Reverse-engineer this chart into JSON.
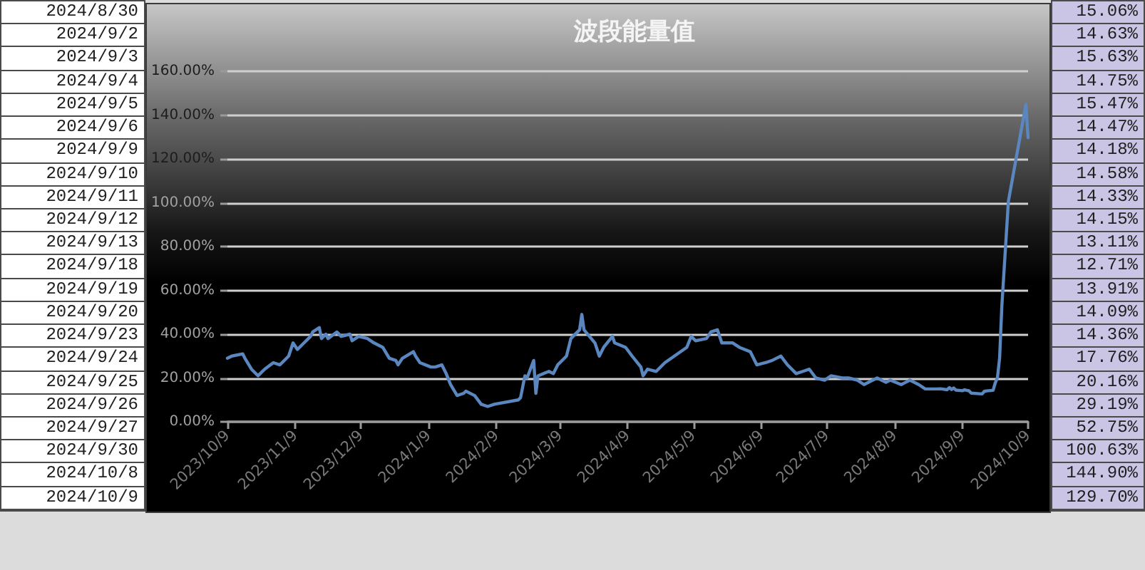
{
  "chart_data": [
    {
      "type": "other",
      "annotations": [
        "2024/8/30",
        "2024/9/2",
        "2024/9/3",
        "2024/9/4",
        "2024/9/5",
        "2024/9/6",
        "2024/9/9",
        "2024/9/10",
        "2024/9/11",
        "2024/9/12",
        "2024/9/13",
        "2024/9/18",
        "2024/9/19",
        "2024/9/20",
        "2024/9/23",
        "2024/9/24",
        "2024/9/25",
        "2024/9/26",
        "2024/9/27",
        "2024/9/30",
        "2024/10/8",
        "2024/10/9"
      ]
    },
    {
      "type": "line",
      "title": "波段能量值",
      "x": [
        "2023-10-09",
        "2023-10-11",
        "2023-10-16",
        "2023-10-17",
        "2023-10-20",
        "2023-10-23",
        "2023-10-26",
        "2023-10-30",
        "2023-11-02",
        "2023-11-06",
        "2023-11-08",
        "2023-11-10",
        "2023-11-13",
        "2023-11-16",
        "2023-11-17",
        "2023-11-20",
        "2023-11-21",
        "2023-11-23",
        "2023-11-24",
        "2023-11-28",
        "2023-11-30",
        "2023-12-04",
        "2023-12-05",
        "2023-12-08",
        "2023-12-12",
        "2023-12-15",
        "2023-12-19",
        "2023-12-22",
        "2023-12-25",
        "2023-12-26",
        "2023-12-28",
        "2024-01-02",
        "2024-01-03",
        "2024-01-05",
        "2024-01-10",
        "2024-01-12",
        "2024-01-15",
        "2024-01-17",
        "2024-01-19",
        "2024-01-22",
        "2024-01-25",
        "2024-01-26",
        "2024-01-30",
        "2024-02-02",
        "2024-02-05",
        "2024-02-08",
        "2024-02-19",
        "2024-02-20",
        "2024-02-22",
        "2024-02-23",
        "2024-02-26",
        "2024-02-27",
        "2024-02-28",
        "2024-03-04",
        "2024-03-06",
        "2024-03-08",
        "2024-03-12",
        "2024-03-14",
        "2024-03-18",
        "2024-03-19",
        "2024-03-20",
        "2024-03-25",
        "2024-03-27",
        "2024-03-29",
        "2024-04-02",
        "2024-04-03",
        "2024-04-08",
        "2024-04-11",
        "2024-04-15",
        "2024-04-16",
        "2024-04-18",
        "2024-04-22",
        "2024-04-26",
        "2024-05-06",
        "2024-05-08",
        "2024-05-10",
        "2024-05-15",
        "2024-05-17",
        "2024-05-20",
        "2024-05-22",
        "2024-05-27",
        "2024-05-30",
        "2024-06-04",
        "2024-06-07",
        "2024-06-11",
        "2024-06-14",
        "2024-06-18",
        "2024-06-21",
        "2024-06-25",
        "2024-06-28",
        "2024-07-01",
        "2024-07-04",
        "2024-07-08",
        "2024-07-11",
        "2024-07-16",
        "2024-07-19",
        "2024-07-23",
        "2024-07-26",
        "2024-07-30",
        "2024-08-01",
        "2024-08-05",
        "2024-08-07",
        "2024-08-12",
        "2024-08-14",
        "2024-08-16",
        "2024-08-20",
        "2024-08-23",
        "2024-08-28",
        "2024-08-30",
        "2024-09-02",
        "2024-09-03",
        "2024-09-04",
        "2024-09-05",
        "2024-09-06",
        "2024-09-09",
        "2024-09-10",
        "2024-09-11",
        "2024-09-12",
        "2024-09-13",
        "2024-09-18",
        "2024-09-19",
        "2024-09-20",
        "2024-09-23",
        "2024-09-24",
        "2024-09-25",
        "2024-09-26",
        "2024-09-27",
        "2024-09-30",
        "2024-10-08",
        "2024-10-09"
      ],
      "values": [
        29,
        30,
        31,
        29,
        24,
        21,
        24,
        27,
        26,
        30,
        36,
        33,
        36,
        39,
        41,
        43,
        38,
        40,
        38,
        41,
        39,
        40,
        37,
        39,
        38,
        36,
        34,
        29,
        28,
        26,
        29,
        32,
        30,
        27,
        25,
        25,
        26,
        22,
        17,
        12,
        13,
        14,
        12,
        8,
        7,
        8,
        10,
        11,
        21,
        20,
        28,
        13,
        21,
        23,
        22,
        26,
        30,
        38,
        42,
        49,
        42,
        36,
        30,
        34,
        39,
        36,
        34,
        30,
        25,
        21,
        24,
        23,
        27,
        34,
        39,
        37,
        38,
        41,
        42,
        36,
        36,
        34,
        32,
        26,
        27,
        28,
        30,
        26,
        22,
        23,
        24,
        20,
        19,
        21,
        20,
        20,
        19,
        17,
        19,
        20,
        18,
        19,
        17,
        18,
        19,
        17,
        15,
        15,
        15.06,
        14.63,
        15.63,
        14.75,
        15.47,
        14.47,
        14.18,
        14.58,
        14.33,
        14.15,
        13.11,
        12.71,
        13.91,
        14.09,
        14.36,
        17.76,
        20.16,
        29.19,
        52.75,
        100.63,
        144.9,
        129.7
      ],
      "color": "#5a87bf",
      "xlim": [
        "2023-10-09",
        "2024-10-09"
      ],
      "xticks": [
        {
          "value": "2023-10-09",
          "label": "2023/10/9"
        },
        {
          "value": "2023-11-09",
          "label": "2023/11/9"
        },
        {
          "value": "2023-12-09",
          "label": "2023/12/9"
        },
        {
          "value": "2024-01-09",
          "label": "2024/1/9"
        },
        {
          "value": "2024-02-09",
          "label": "2024/2/9"
        },
        {
          "value": "2024-03-09",
          "label": "2024/3/9"
        },
        {
          "value": "2024-04-09",
          "label": "2024/4/9"
        },
        {
          "value": "2024-05-09",
          "label": "2024/5/9"
        },
        {
          "value": "2024-06-09",
          "label": "2024/6/9"
        },
        {
          "value": "2024-07-09",
          "label": "2024/7/9"
        },
        {
          "value": "2024-08-09",
          "label": "2024/8/9"
        },
        {
          "value": "2024-09-09",
          "label": "2024/9/9"
        },
        {
          "value": "2024-10-09",
          "label": "2024/10/9"
        }
      ],
      "ylim": [
        0,
        160
      ],
      "yticks": [
        {
          "value": 0,
          "label": "0.00%"
        },
        {
          "value": 20,
          "label": "20.00%"
        },
        {
          "value": 40,
          "label": "40.00%"
        },
        {
          "value": 60,
          "label": "60.00%"
        },
        {
          "value": 80,
          "label": "80.00%"
        },
        {
          "value": 100,
          "label": "100.00%"
        },
        {
          "value": 120,
          "label": "120.00%"
        },
        {
          "value": 140,
          "label": "140.00%"
        },
        {
          "value": 160,
          "label": "160.00%"
        }
      ],
      "grid": "y",
      "marker": "none",
      "line_style": "solid"
    },
    {
      "type": "other",
      "annotations": [
        "15.06%",
        "14.63%",
        "15.63%",
        "14.75%",
        "15.47%",
        "14.47%",
        "14.18%",
        "14.58%",
        "14.33%",
        "14.15%",
        "13.11%",
        "12.71%",
        "13.91%",
        "14.09%",
        "14.36%",
        "17.76%",
        "20.16%",
        "29.19%",
        "52.75%",
        "100.63%",
        "144.90%",
        "129.70%"
      ]
    }
  ]
}
